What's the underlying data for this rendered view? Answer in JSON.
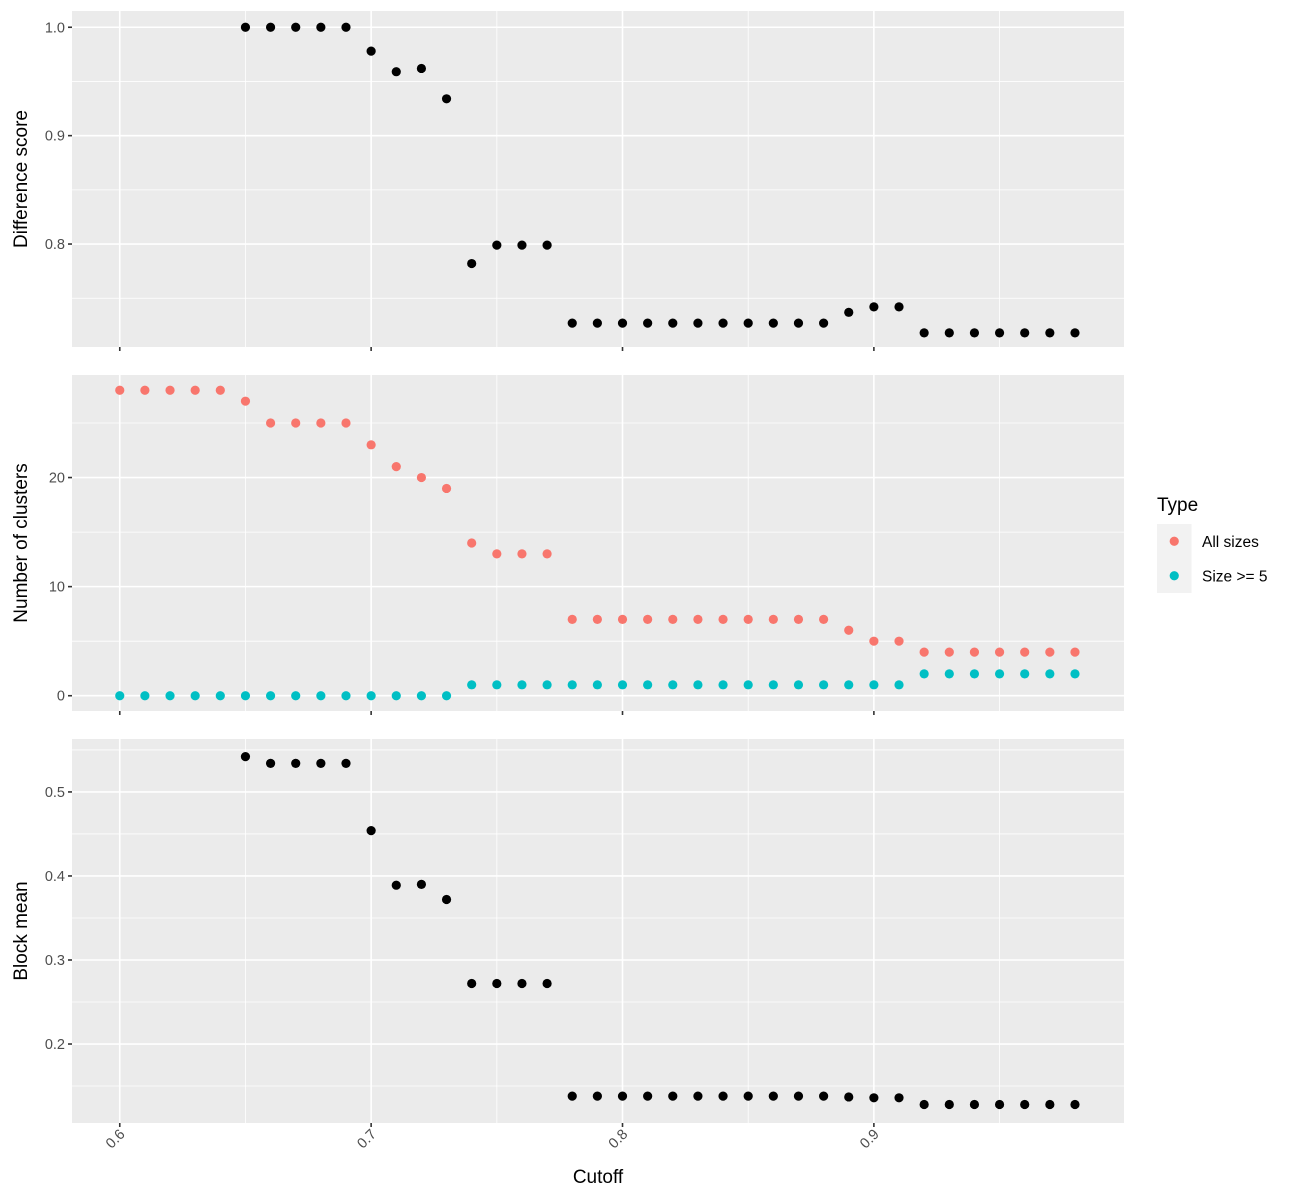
{
  "chart_data": [
    {
      "type": "scatter",
      "ylabel": "Difference score",
      "yticks": [
        {
          "value": 0.8,
          "label": "0.8"
        },
        {
          "value": 0.9,
          "label": "0.9"
        },
        {
          "value": 1.0,
          "label": "1.0"
        }
      ],
      "ylim": [
        0.705,
        1.015
      ],
      "grid": true,
      "series": [
        {
          "color": "#000000",
          "x": [
            0.65,
            0.66,
            0.67,
            0.68,
            0.69,
            0.7,
            0.71,
            0.72,
            0.73,
            0.74,
            0.75,
            0.76,
            0.77,
            0.78,
            0.79,
            0.8,
            0.81,
            0.82,
            0.83,
            0.84,
            0.85,
            0.86,
            0.87,
            0.88,
            0.89,
            0.9,
            0.91,
            0.92,
            0.93,
            0.94,
            0.95,
            0.96,
            0.97,
            0.98
          ],
          "y": [
            1.0,
            1.0,
            1.0,
            1.0,
            1.0,
            0.978,
            0.959,
            0.962,
            0.934,
            0.782,
            0.799,
            0.799,
            0.799,
            0.727,
            0.727,
            0.727,
            0.727,
            0.727,
            0.727,
            0.727,
            0.727,
            0.727,
            0.727,
            0.727,
            0.737,
            0.742,
            0.742,
            0.718,
            0.718,
            0.718,
            0.718,
            0.718,
            0.718,
            0.718
          ]
        }
      ]
    },
    {
      "type": "scatter",
      "ylabel": "Number of clusters",
      "yticks": [
        {
          "value": 0,
          "label": "0"
        },
        {
          "value": 10,
          "label": "10"
        },
        {
          "value": 20,
          "label": "20"
        }
      ],
      "ylim": [
        -1.4,
        29.4
      ],
      "grid": true,
      "legend": {
        "title": "Type",
        "position": "right",
        "entries": [
          {
            "label": "All sizes",
            "color": "#F8766D"
          },
          {
            "label": "Size >= 5",
            "color": "#00BFC4"
          }
        ]
      },
      "series": [
        {
          "name": "All sizes",
          "color": "#F8766D",
          "x": [
            0.6,
            0.61,
            0.62,
            0.63,
            0.64,
            0.65,
            0.66,
            0.67,
            0.68,
            0.69,
            0.7,
            0.71,
            0.72,
            0.73,
            0.74,
            0.75,
            0.76,
            0.77,
            0.78,
            0.79,
            0.8,
            0.81,
            0.82,
            0.83,
            0.84,
            0.85,
            0.86,
            0.87,
            0.88,
            0.89,
            0.9,
            0.91,
            0.92,
            0.93,
            0.94,
            0.95,
            0.96,
            0.97,
            0.98
          ],
          "y": [
            28,
            28,
            28,
            28,
            28,
            27,
            25,
            25,
            25,
            25,
            23,
            21,
            20,
            19,
            14,
            13,
            13,
            13,
            7,
            7,
            7,
            7,
            7,
            7,
            7,
            7,
            7,
            7,
            7,
            6,
            5,
            5,
            4,
            4,
            4,
            4,
            4,
            4,
            4
          ]
        },
        {
          "name": "Size >= 5",
          "color": "#00BFC4",
          "x": [
            0.6,
            0.61,
            0.62,
            0.63,
            0.64,
            0.65,
            0.66,
            0.67,
            0.68,
            0.69,
            0.7,
            0.71,
            0.72,
            0.73,
            0.74,
            0.75,
            0.76,
            0.77,
            0.78,
            0.79,
            0.8,
            0.81,
            0.82,
            0.83,
            0.84,
            0.85,
            0.86,
            0.87,
            0.88,
            0.89,
            0.9,
            0.91,
            0.92,
            0.93,
            0.94,
            0.95,
            0.96,
            0.97,
            0.98
          ],
          "y": [
            0,
            0,
            0,
            0,
            0,
            0,
            0,
            0,
            0,
            0,
            0,
            0,
            0,
            0,
            1,
            1,
            1,
            1,
            1,
            1,
            1,
            1,
            1,
            1,
            1,
            1,
            1,
            1,
            1,
            1,
            1,
            1,
            2,
            2,
            2,
            2,
            2,
            2,
            2
          ]
        }
      ]
    },
    {
      "type": "scatter",
      "ylabel": "Block mean",
      "xlabel": "Cutoff",
      "yticks": [
        {
          "value": 0.2,
          "label": "0.2"
        },
        {
          "value": 0.3,
          "label": "0.3"
        },
        {
          "value": 0.4,
          "label": "0.4"
        },
        {
          "value": 0.5,
          "label": "0.5"
        }
      ],
      "ylim": [
        0.106,
        0.563
      ],
      "grid": true,
      "series": [
        {
          "color": "#000000",
          "x": [
            0.65,
            0.66,
            0.67,
            0.68,
            0.69,
            0.7,
            0.71,
            0.72,
            0.73,
            0.74,
            0.75,
            0.76,
            0.77,
            0.78,
            0.79,
            0.8,
            0.81,
            0.82,
            0.83,
            0.84,
            0.85,
            0.86,
            0.87,
            0.88,
            0.89,
            0.9,
            0.91,
            0.92,
            0.93,
            0.94,
            0.95,
            0.96,
            0.97,
            0.98
          ],
          "y": [
            0.542,
            0.534,
            0.534,
            0.534,
            0.534,
            0.454,
            0.389,
            0.39,
            0.372,
            0.272,
            0.272,
            0.272,
            0.272,
            0.138,
            0.138,
            0.138,
            0.138,
            0.138,
            0.138,
            0.138,
            0.138,
            0.138,
            0.138,
            0.138,
            0.137,
            0.136,
            0.136,
            0.128,
            0.128,
            0.128,
            0.128,
            0.128,
            0.128,
            0.128
          ]
        }
      ]
    }
  ],
  "shared_x": {
    "xlim": [
      0.581,
      0.9995
    ],
    "ticks": [
      {
        "value": 0.6,
        "label": "0.6"
      },
      {
        "value": 0.7,
        "label": "0.7"
      },
      {
        "value": 0.8,
        "label": "0.8"
      },
      {
        "value": 0.9,
        "label": "0.9"
      }
    ]
  }
}
